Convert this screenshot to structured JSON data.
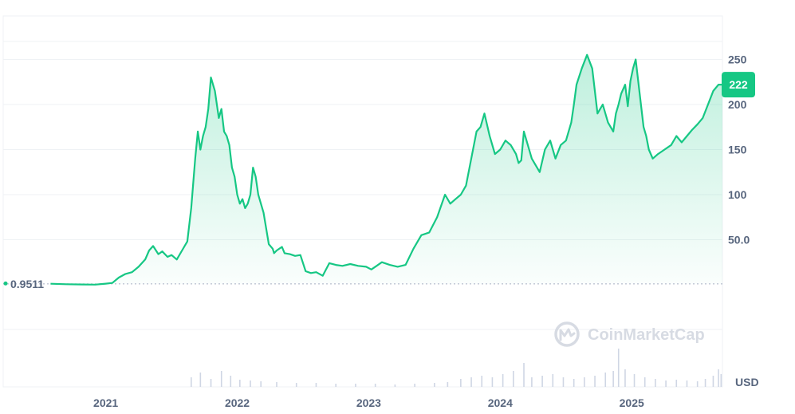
{
  "chart_data": {
    "type": "area",
    "unit": "USD",
    "start_value": "0.9511",
    "current_value": "222",
    "ylim": [
      -25,
      290
    ],
    "grid": true,
    "y_ticks": [
      {
        "value": 50,
        "label": "50.0"
      },
      {
        "value": 100,
        "label": "100"
      },
      {
        "value": 150,
        "label": "150"
      },
      {
        "value": 200,
        "label": "200"
      },
      {
        "value": 250,
        "label": "250"
      }
    ],
    "x_ticks": [
      {
        "value": 2021.0,
        "label": "2021"
      },
      {
        "value": 2022.0,
        "label": "2022"
      },
      {
        "value": 2023.0,
        "label": "2023"
      },
      {
        "value": 2024.0,
        "label": "2024"
      },
      {
        "value": 2025.0,
        "label": "2025"
      }
    ],
    "xlim": [
      2020.22,
      2025.69
    ],
    "colors": {
      "line": "#16c784",
      "fill": "#16c784",
      "grid": "#eff2f5",
      "baseline": "#a6b0c3",
      "tick": "#58667e"
    },
    "watermark": "CoinMarketCap",
    "series": [
      {
        "x": [
          2020.58,
          2020.7,
          2020.82,
          2020.92,
          2021.0,
          2021.05,
          2021.1,
          2021.15,
          2021.2,
          2021.25,
          2021.3,
          2021.33,
          2021.36,
          2021.4,
          2021.43,
          2021.47,
          2021.5,
          2021.54,
          2021.58,
          2021.62,
          2021.65,
          2021.68,
          2021.7,
          2021.72,
          2021.74,
          2021.76,
          2021.78,
          2021.8,
          2021.83,
          2021.86,
          2021.88,
          2021.9,
          2021.92,
          2021.94,
          2021.96,
          2021.98,
          2022.0,
          2022.02,
          2022.04,
          2022.06,
          2022.08,
          2022.1,
          2022.12,
          2022.14,
          2022.16,
          2022.2,
          2022.24,
          2022.27,
          2022.28,
          2022.3,
          2022.34,
          2022.36,
          2022.4,
          2022.44,
          2022.48,
          2022.52,
          2022.56,
          2022.6,
          2022.65,
          2022.7,
          2022.75,
          2022.8,
          2022.86,
          2022.92,
          2022.98,
          2023.02,
          2023.06,
          2023.1,
          2023.16,
          2023.22,
          2023.28,
          2023.34,
          2023.4,
          2023.46,
          2023.52,
          2023.58,
          2023.62,
          2023.66,
          2023.7,
          2023.74,
          2023.78,
          2023.82,
          2023.85,
          2023.88,
          2023.92,
          2023.96,
          2024.0,
          2024.04,
          2024.08,
          2024.12,
          2024.14,
          2024.16,
          2024.18,
          2024.2,
          2024.22,
          2024.24,
          2024.26,
          2024.3,
          2024.34,
          2024.38,
          2024.42,
          2024.46,
          2024.5,
          2024.54,
          2024.56,
          2024.58,
          2024.62,
          2024.66,
          2024.7,
          2024.74,
          2024.78,
          2024.82,
          2024.86,
          2024.88,
          2024.9,
          2024.92,
          2024.95,
          2024.97,
          2024.99,
          2025.01,
          2025.03,
          2025.05,
          2025.07,
          2025.09,
          2025.11,
          2025.13,
          2025.16,
          2025.2,
          2025.25,
          2025.3,
          2025.34,
          2025.38,
          2025.42,
          2025.46,
          2025.5,
          2025.54,
          2025.58,
          2025.62,
          2025.66,
          2025.69
        ],
        "y": [
          1.1,
          0.6,
          0.3,
          0.2,
          1.2,
          2.0,
          8.0,
          12.0,
          14.0,
          20.0,
          28.0,
          38.0,
          43.0,
          34.0,
          37.0,
          31.0,
          33.0,
          28.0,
          38.0,
          48.0,
          85.0,
          140.0,
          170.0,
          150.0,
          165.0,
          175.0,
          195.0,
          230.0,
          215.0,
          185.0,
          195.0,
          170.0,
          165.0,
          155.0,
          130.0,
          120.0,
          100.0,
          90.0,
          95.0,
          85.0,
          90.0,
          100.0,
          130.0,
          120.0,
          100.0,
          80.0,
          45.0,
          40.0,
          35.0,
          38.0,
          42.0,
          35.0,
          34.0,
          32.0,
          33.0,
          15.0,
          13.0,
          14.0,
          10.0,
          24.0,
          22.0,
          21.0,
          23.0,
          21.0,
          20.0,
          17.0,
          21.0,
          25.0,
          22.0,
          20.0,
          22.0,
          40.0,
          55.0,
          58.0,
          75.0,
          100.0,
          90.0,
          95.0,
          100.0,
          110.0,
          140.0,
          170.0,
          175.0,
          190.0,
          165.0,
          145.0,
          150.0,
          160.0,
          155.0,
          145.0,
          135.0,
          138.0,
          170.0,
          160.0,
          150.0,
          140.0,
          135.0,
          125.0,
          150.0,
          160.0,
          140.0,
          155.0,
          160.0,
          180.0,
          200.0,
          222.0,
          240.0,
          255.0,
          240.0,
          190.0,
          200.0,
          180.0,
          170.0,
          190.0,
          200.0,
          212.0,
          222.0,
          198.0,
          226.0,
          240.0,
          250.0,
          225.0,
          200.0,
          175.0,
          165.0,
          150.0,
          140.0,
          145.0,
          150.0,
          155.0,
          165.0,
          158.0,
          165.0,
          172.0,
          178.0,
          185.0,
          200.0,
          215.0,
          222.0,
          222.0
        ]
      }
    ],
    "volume": [
      {
        "x": 2021.65,
        "v": 12
      },
      {
        "x": 2021.72,
        "v": 18
      },
      {
        "x": 2021.8,
        "v": 10
      },
      {
        "x": 2021.88,
        "v": 20
      },
      {
        "x": 2021.95,
        "v": 14
      },
      {
        "x": 2022.02,
        "v": 9
      },
      {
        "x": 2022.1,
        "v": 8
      },
      {
        "x": 2022.18,
        "v": 7
      },
      {
        "x": 2022.3,
        "v": 6
      },
      {
        "x": 2022.45,
        "v": 5
      },
      {
        "x": 2022.6,
        "v": 5
      },
      {
        "x": 2022.75,
        "v": 4
      },
      {
        "x": 2022.9,
        "v": 4
      },
      {
        "x": 2023.05,
        "v": 4
      },
      {
        "x": 2023.2,
        "v": 3
      },
      {
        "x": 2023.35,
        "v": 4
      },
      {
        "x": 2023.5,
        "v": 5
      },
      {
        "x": 2023.6,
        "v": 6
      },
      {
        "x": 2023.7,
        "v": 10
      },
      {
        "x": 2023.78,
        "v": 12
      },
      {
        "x": 2023.86,
        "v": 14
      },
      {
        "x": 2023.94,
        "v": 12
      },
      {
        "x": 2024.02,
        "v": 16
      },
      {
        "x": 2024.1,
        "v": 20
      },
      {
        "x": 2024.18,
        "v": 30
      },
      {
        "x": 2024.24,
        "v": 12
      },
      {
        "x": 2024.32,
        "v": 14
      },
      {
        "x": 2024.4,
        "v": 16
      },
      {
        "x": 2024.48,
        "v": 12
      },
      {
        "x": 2024.56,
        "v": 10
      },
      {
        "x": 2024.64,
        "v": 12
      },
      {
        "x": 2024.72,
        "v": 14
      },
      {
        "x": 2024.8,
        "v": 18
      },
      {
        "x": 2024.86,
        "v": 20
      },
      {
        "x": 2024.9,
        "v": 48
      },
      {
        "x": 2024.95,
        "v": 22
      },
      {
        "x": 2025.02,
        "v": 16
      },
      {
        "x": 2025.1,
        "v": 12
      },
      {
        "x": 2025.18,
        "v": 10
      },
      {
        "x": 2025.26,
        "v": 8
      },
      {
        "x": 2025.34,
        "v": 9
      },
      {
        "x": 2025.42,
        "v": 8
      },
      {
        "x": 2025.5,
        "v": 7
      },
      {
        "x": 2025.56,
        "v": 10
      },
      {
        "x": 2025.62,
        "v": 14
      },
      {
        "x": 2025.66,
        "v": 22
      },
      {
        "x": 2025.68,
        "v": 16
      }
    ]
  }
}
